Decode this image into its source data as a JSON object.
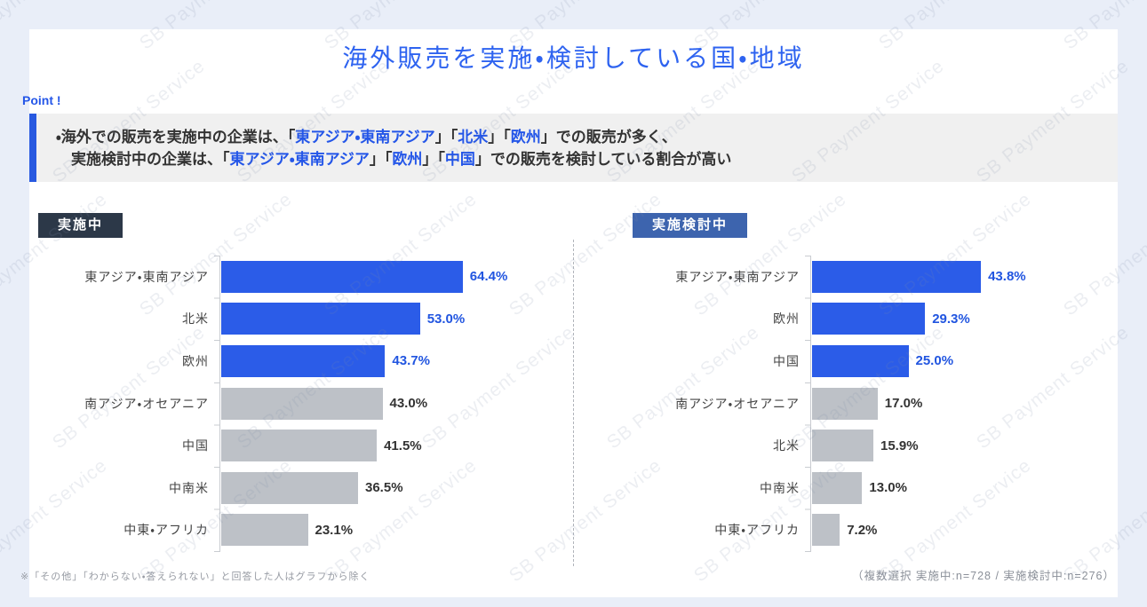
{
  "title": "海外販売を実施・検討している国・地域",
  "watermark": {
    "text": "SB Payment Service"
  },
  "point": {
    "label": "Point !",
    "line1": [
      {
        "t": "・海外での販売を実施中の企業は、「",
        "c": "dark"
      },
      {
        "t": "東アジア・東南アジア",
        "c": "blue"
      },
      {
        "t": "」「",
        "c": "dark"
      },
      {
        "t": "北米",
        "c": "blue"
      },
      {
        "t": "」「",
        "c": "dark"
      },
      {
        "t": "欧州",
        "c": "blue"
      },
      {
        "t": "」での販売が多く、",
        "c": "dark"
      }
    ],
    "line2": [
      {
        "t": "実施検討中の企業は、「",
        "c": "dark"
      },
      {
        "t": "東アジア・東南アジア",
        "c": "blue"
      },
      {
        "t": "」「",
        "c": "dark"
      },
      {
        "t": "欧州",
        "c": "blue"
      },
      {
        "t": "」「",
        "c": "dark"
      },
      {
        "t": "中国",
        "c": "blue"
      },
      {
        "t": "」での販売を検討している割合が高い",
        "c": "dark"
      }
    ]
  },
  "chart_data": [
    {
      "type": "bar",
      "orientation": "horizontal",
      "title": "実施中",
      "unit": "%",
      "n": 728,
      "categories": [
        "東アジア・東南アジア",
        "北米",
        "欧州",
        "南アジア・オセアニア",
        "中国",
        "中南米",
        "中東・アフリカ"
      ],
      "values": [
        64.4,
        53.0,
        43.7,
        43.0,
        41.5,
        36.5,
        23.1
      ],
      "highlight_count": 3,
      "highlight_color": "#2b5ce8",
      "base_color": "#bdc1c7",
      "value_labels": [
        "64.4%",
        "53.0%",
        "43.7%",
        "43.0%",
        "41.5%",
        "36.5%",
        "23.1%"
      ],
      "xlim": [
        0,
        100
      ],
      "grid": false,
      "legend": false
    },
    {
      "type": "bar",
      "orientation": "horizontal",
      "title": "実施検討中",
      "unit": "%",
      "n": 276,
      "categories": [
        "東アジア・東南アジア",
        "欧州",
        "中国",
        "南アジア・オセアニア",
        "北米",
        "中南米",
        "中東・アフリカ"
      ],
      "values": [
        43.8,
        29.3,
        25.0,
        17.0,
        15.9,
        13.0,
        7.2
      ],
      "highlight_count": 3,
      "highlight_color": "#2b5ce8",
      "base_color": "#bdc1c7",
      "value_labels": [
        "43.8%",
        "29.3%",
        "25.0%",
        "17.0%",
        "15.9%",
        "13.0%",
        "7.2%"
      ],
      "xlim": [
        0,
        100
      ],
      "grid": false,
      "legend": false
    }
  ],
  "footnotes": {
    "left": "※「その他」「わからない・答えられない」と回答した人はグラフから除く",
    "right": "（複数選択 実施中:n=728 / 実施検討中:n=276）"
  },
  "colors": {
    "accent_blue": "#2b5ce8",
    "bar_gray": "#bdc1c7",
    "badge_dark": "#2c3848",
    "badge_blue": "#3d64ae",
    "title_blue": "#2e63f0",
    "frame_bg": "#e9eef8",
    "point_box_bg": "#f0f0f0"
  }
}
